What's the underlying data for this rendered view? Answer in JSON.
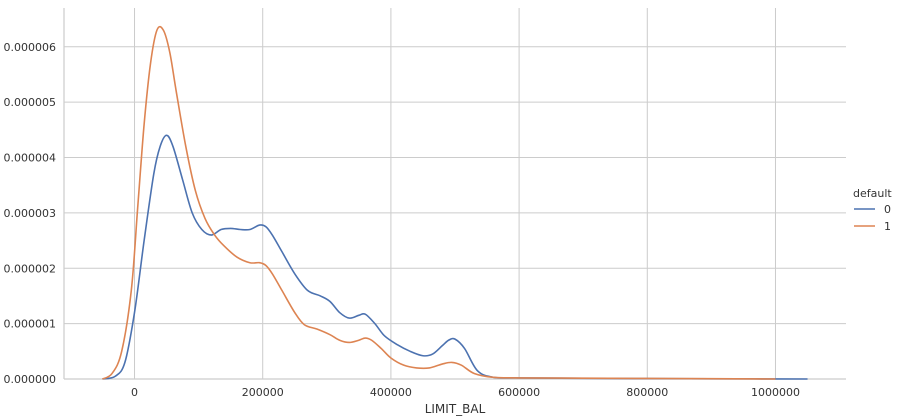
{
  "chart_data": {
    "type": "line",
    "title": "",
    "xlabel": "LIMIT_BAL",
    "ylabel": "",
    "xlim": [
      -110000,
      1110000
    ],
    "ylim": [
      0,
      6.7e-06
    ],
    "xticks": [
      0,
      200000,
      400000,
      600000,
      800000,
      1000000
    ],
    "xtick_labels": [
      "0",
      "200000",
      "400000",
      "600000",
      "800000",
      "1000000"
    ],
    "yticks": [
      0,
      1e-06,
      2e-06,
      3e-06,
      4e-06,
      5e-06,
      6e-06
    ],
    "ytick_labels": [
      "0.000000",
      "0.000001",
      "0.000002",
      "0.000003",
      "0.000004",
      "0.000005",
      "0.000006"
    ],
    "grid": true,
    "legend": {
      "title": "default",
      "placement": "right-center"
    },
    "series": [
      {
        "name": "0",
        "color": "#4c72b0",
        "x": [
          -50000,
          -30000,
          -15000,
          0,
          15000,
          30000,
          40000,
          50000,
          60000,
          75000,
          90000,
          105000,
          120000,
          135000,
          150000,
          165000,
          180000,
          195000,
          205000,
          215000,
          230000,
          250000,
          270000,
          290000,
          305000,
          320000,
          335000,
          350000,
          360000,
          375000,
          390000,
          410000,
          430000,
          450000,
          465000,
          480000,
          490000,
          500000,
          515000,
          535000,
          560000,
          600000,
          700000,
          800000,
          900000,
          1050000
        ],
        "y": [
          0,
          5e-08,
          3e-07,
          1.2e-06,
          2.5e-06,
          3.7e-06,
          4.2e-06,
          4.4e-06,
          4.2e-06,
          3.6e-06,
          3e-06,
          2.7e-06,
          2.6e-06,
          2.7e-06,
          2.72e-06,
          2.7e-06,
          2.7e-06,
          2.78e-06,
          2.75e-06,
          2.6e-06,
          2.3e-06,
          1.9e-06,
          1.6e-06,
          1.5e-06,
          1.4e-06,
          1.2e-06,
          1.1e-06,
          1.15e-06,
          1.17e-06,
          1e-06,
          7.8e-07,
          6.2e-07,
          5e-07,
          4.2e-07,
          4.5e-07,
          6e-07,
          7e-07,
          7.2e-07,
          5.5e-07,
          1.5e-07,
          3e-08,
          2e-08,
          1.2e-08,
          8e-09,
          4e-09,
          0
        ]
      },
      {
        "name": "1",
        "color": "#dd8452",
        "x": [
          -50000,
          -35000,
          -20000,
          -5000,
          5000,
          15000,
          25000,
          35000,
          45000,
          55000,
          65000,
          80000,
          95000,
          110000,
          125000,
          140000,
          160000,
          180000,
          195000,
          205000,
          215000,
          230000,
          250000,
          265000,
          285000,
          305000,
          320000,
          335000,
          350000,
          360000,
          370000,
          385000,
          400000,
          420000,
          440000,
          460000,
          480000,
          495000,
          510000,
          530000,
          560000,
          600000,
          700000,
          800000,
          900000,
          1000000
        ],
        "y": [
          0,
          1e-07,
          5e-07,
          1.6e-06,
          3.1e-06,
          4.6e-06,
          5.7e-06,
          6.3e-06,
          6.3e-06,
          5.9e-06,
          5.2e-06,
          4.2e-06,
          3.4e-06,
          2.9e-06,
          2.6e-06,
          2.4e-06,
          2.2e-06,
          2.1e-06,
          2.1e-06,
          2.05e-06,
          1.9e-06,
          1.6e-06,
          1.2e-06,
          9.8e-07,
          9e-07,
          8e-07,
          7e-07,
          6.6e-07,
          7e-07,
          7.4e-07,
          7e-07,
          5.5e-07,
          3.8e-07,
          2.5e-07,
          2e-07,
          2e-07,
          2.7e-07,
          3e-07,
          2.5e-07,
          1e-07,
          3e-08,
          2e-08,
          1.5e-08,
          1e-08,
          5e-09,
          0
        ]
      }
    ]
  }
}
